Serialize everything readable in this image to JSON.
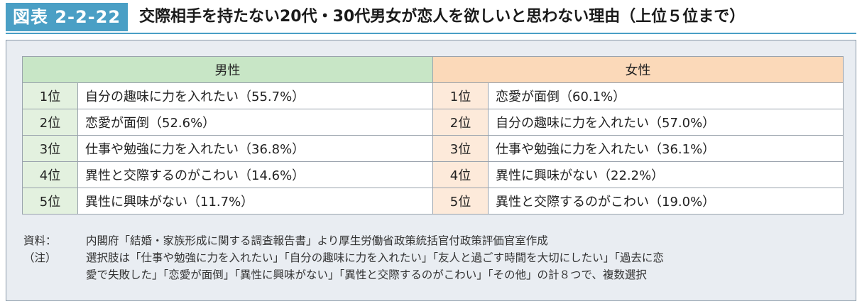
{
  "figure": {
    "label": "図表 2-2-22",
    "title": "交際相手を持たない20代・30代男女が恋人を欲しいと思わない理由（上位５位まで）"
  },
  "table": {
    "male_header": "男性",
    "female_header": "女性",
    "rows": [
      {
        "male_rank": "1位",
        "male_reason": "自分の趣味に力を入れたい（55.7%）",
        "female_rank": "1位",
        "female_reason": "恋愛が面倒（60.1%）"
      },
      {
        "male_rank": "2位",
        "male_reason": "恋愛が面倒（52.6%）",
        "female_rank": "2位",
        "female_reason": "自分の趣味に力を入れたい（57.0%）"
      },
      {
        "male_rank": "3位",
        "male_reason": "仕事や勉強に力を入れたい（36.8%）",
        "female_rank": "3位",
        "female_reason": "仕事や勉強に力を入れたい（36.1%）"
      },
      {
        "male_rank": "4位",
        "male_reason": "異性と交際するのがこわい（14.6%）",
        "female_rank": "4位",
        "female_reason": "異性に興味がない（22.2%）"
      },
      {
        "male_rank": "5位",
        "male_reason": "異性に興味がない（11.7%）",
        "female_rank": "5位",
        "female_reason": "異性と交際するのがこわい（19.0%）"
      }
    ]
  },
  "notes": {
    "source_key": "資料：",
    "source_text": "内閣府「結婚・家族形成に関する調査報告書」より厚生労働省政策統括官付政策評価官室作成",
    "note_key": "（注）",
    "note_line1": "選択肢は「仕事や勉強に力を入れたい」「自分の趣味に力を入れたい」「友人と過ごす時間を大切にしたい」「過去に恋",
    "note_line2": "愛で失敗した」「恋愛が面倒」「異性に興味がない」「異性と交際するのがこわい」「その他」の計８つで、複数選択"
  },
  "colors": {
    "label_bg": "#4a9fc5",
    "male_header_bg": "#c8e6c6",
    "female_header_bg": "#fbd9b9",
    "male_rank_bg": "#e3f1df",
    "female_rank_bg": "#fdeada",
    "panel_bg": "#e9edf2"
  }
}
